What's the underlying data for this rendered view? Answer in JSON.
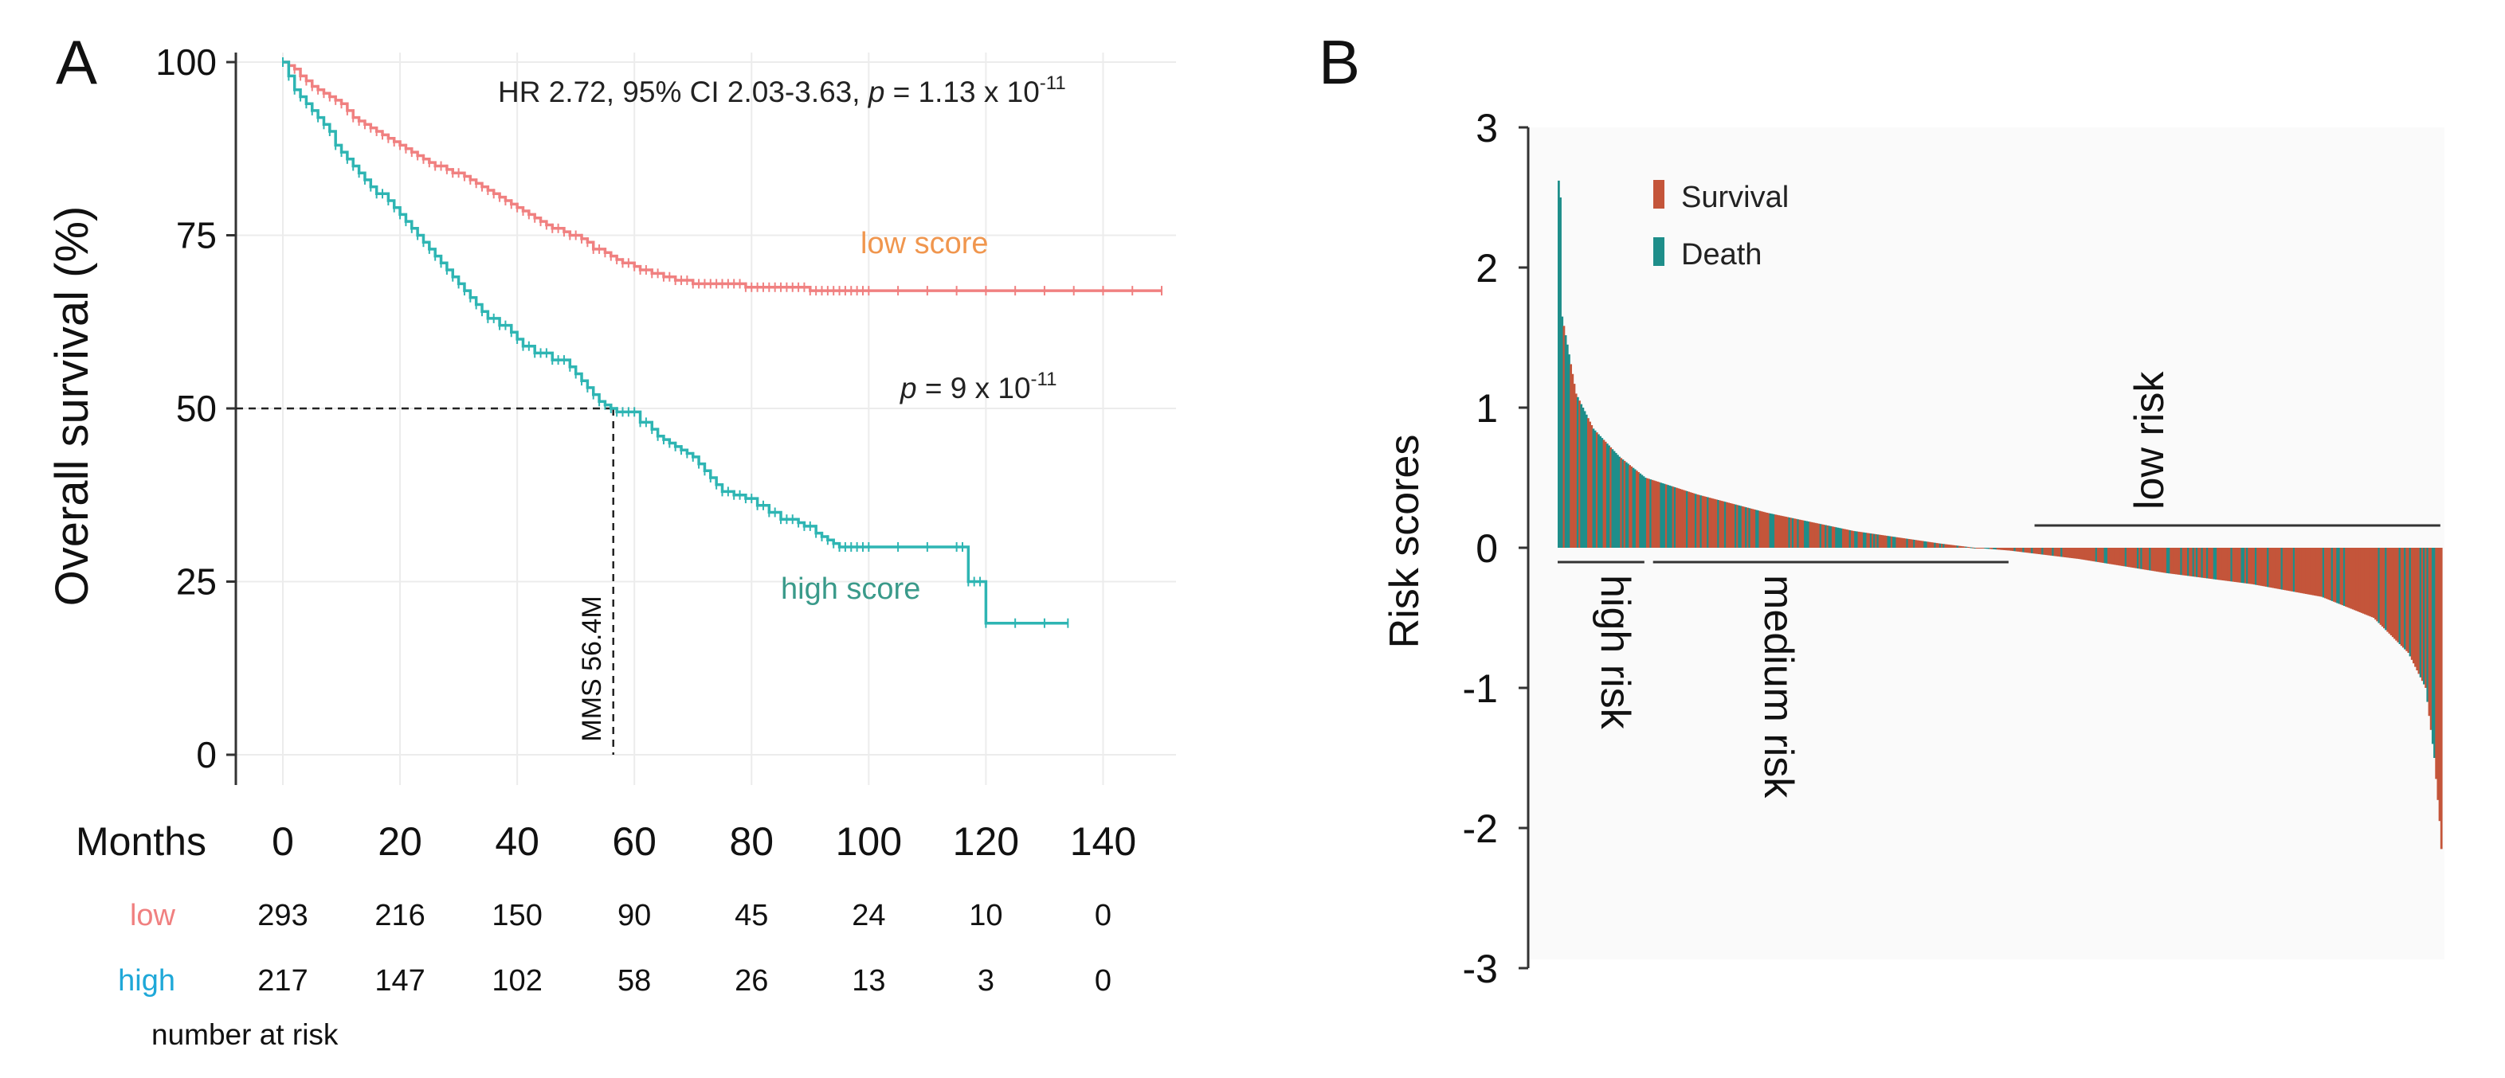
{
  "panels": {
    "a_label": "A",
    "b_label": "B"
  },
  "chart_data": [
    {
      "type": "line",
      "title": "",
      "xlabel": "Months",
      "ylabel": "Overall survival (%)",
      "xlim": [
        0,
        150
      ],
      "ylim": [
        0,
        100
      ],
      "x_ticks": [
        0,
        20,
        40,
        60,
        80,
        100,
        120,
        140
      ],
      "y_ticks": [
        0,
        25,
        50,
        75,
        100
      ],
      "grid": true,
      "annotations": {
        "hr_text": "HR 2.72, 95% CI 2.03-3.63, ",
        "hr_p_label": "p",
        "hr_p_value": " = 1.13 x 10",
        "hr_p_exp": "-11",
        "logrank_p_label": "p",
        "logrank_p_value": " = 9 x 10",
        "logrank_p_exp": "-11",
        "median_label": "MMS 56.4M",
        "median_months": 56.4,
        "median_survival": 50
      },
      "colors": {
        "low": "#F08080",
        "high": "#2EB5B3",
        "low_label": "#F0964E",
        "high_label": "#3A9A8A",
        "risk_high_label": "#1FA8D8"
      },
      "series": [
        {
          "name": "low score",
          "x": [
            0,
            1,
            2,
            3,
            4,
            5,
            6,
            7,
            8,
            9,
            10,
            11,
            12,
            13,
            14,
            15,
            16,
            17,
            18,
            19,
            20,
            21,
            22,
            23,
            24,
            25,
            26,
            27,
            28,
            29,
            30,
            31,
            32,
            33,
            34,
            35,
            36,
            37,
            38,
            39,
            40,
            41,
            42,
            43,
            44,
            45,
            46,
            47,
            48,
            49,
            50,
            51,
            52,
            53,
            54,
            55,
            56,
            57,
            58,
            59,
            60,
            61,
            62,
            63,
            64,
            65,
            66,
            67,
            68,
            69,
            70,
            71,
            72,
            73,
            74,
            75,
            76,
            77,
            78,
            79,
            80,
            81,
            82,
            83,
            84,
            85,
            86,
            87,
            88,
            89,
            90,
            91,
            92,
            93,
            94,
            95,
            96,
            97,
            98,
            99,
            100,
            105,
            110,
            115,
            120,
            125,
            130,
            135,
            140,
            145,
            150
          ],
          "y": [
            100,
            99.5,
            99,
            98,
            97.3,
            96.5,
            96,
            95.5,
            95,
            94.5,
            94,
            93,
            92,
            91.5,
            91,
            90.5,
            90,
            89.5,
            89,
            88.5,
            88,
            87.5,
            87,
            86.5,
            86,
            85.5,
            85,
            85,
            84.5,
            84,
            84,
            83.5,
            83,
            82.5,
            82,
            81.5,
            81,
            80.5,
            80,
            79.5,
            79,
            78.5,
            78,
            77.5,
            77,
            76.5,
            76,
            76,
            75.5,
            75,
            75,
            74.5,
            74,
            73,
            73,
            72.5,
            72,
            71.5,
            71,
            71,
            70.5,
            70,
            70,
            69.5,
            69.5,
            69,
            69,
            68.5,
            68.5,
            68.5,
            68,
            68,
            68,
            68,
            68,
            68,
            68,
            68,
            68,
            67.5,
            67.5,
            67.5,
            67.5,
            67.5,
            67.5,
            67.5,
            67.5,
            67.5,
            67.5,
            67.5,
            67,
            67,
            67,
            67,
            67,
            67,
            67,
            67,
            67,
            67,
            67,
            67,
            67,
            67,
            67,
            67,
            67,
            67,
            67,
            67,
            67
          ]
        },
        {
          "name": "high score",
          "x": [
            0,
            1,
            2,
            3,
            4,
            5,
            6,
            7,
            8,
            9,
            10,
            11,
            12,
            13,
            14,
            15,
            16,
            17,
            18,
            19,
            20,
            21,
            22,
            23,
            24,
            25,
            26,
            27,
            28,
            29,
            30,
            31,
            32,
            33,
            34,
            35,
            36,
            37,
            38,
            39,
            40,
            41,
            42,
            43,
            44,
            45,
            46,
            47,
            48,
            49,
            50,
            51,
            52,
            53,
            54,
            55,
            56,
            57,
            58,
            59,
            60,
            61,
            62,
            63,
            64,
            65,
            66,
            67,
            68,
            69,
            70,
            71,
            72,
            73,
            74,
            75,
            76,
            77,
            78,
            79,
            80,
            81,
            82,
            83,
            84,
            85,
            86,
            87,
            88,
            89,
            90,
            91,
            92,
            93,
            94,
            95,
            96,
            97,
            98,
            99,
            100,
            105,
            110,
            115,
            116,
            117,
            118,
            119,
            120,
            125,
            130,
            134
          ],
          "y": [
            100,
            98,
            96,
            95,
            94,
            93,
            92,
            91,
            90,
            88,
            87,
            86,
            85,
            84,
            83,
            82,
            81,
            81,
            80,
            79,
            78,
            77,
            76,
            75,
            74,
            73,
            72,
            71,
            70,
            69,
            68,
            67,
            66,
            65,
            64,
            63,
            63,
            62,
            62,
            61,
            60,
            59,
            59,
            58,
            58,
            58,
            57,
            57,
            57,
            56,
            55,
            54,
            53,
            52,
            51,
            50.5,
            50,
            49.5,
            49.5,
            49.5,
            49.5,
            48,
            48,
            47,
            46,
            45.5,
            45,
            44.5,
            44,
            43.5,
            43,
            42,
            41,
            40,
            39,
            38,
            38,
            37.5,
            37.5,
            37,
            37,
            36,
            36,
            35,
            35,
            34,
            34,
            34,
            33.5,
            33,
            33,
            32,
            31.5,
            31,
            30.5,
            30,
            30,
            30,
            30,
            30,
            30,
            30,
            30,
            30,
            30,
            25,
            25,
            25,
            19,
            19,
            19,
            19
          ]
        }
      ],
      "risk_table": {
        "title": "number at risk",
        "months_label": "Months",
        "rows": [
          {
            "label": "low",
            "values": [
              "293",
              "216",
              "150",
              "90",
              "45",
              "24",
              "10",
              "0"
            ]
          },
          {
            "label": "high",
            "values": [
              "217",
              "147",
              "102",
              "58",
              "26",
              "13",
              "3",
              "0"
            ]
          }
        ]
      }
    },
    {
      "type": "bar",
      "title": "",
      "xlabel": "",
      "ylabel": "Risk scores",
      "ylim": [
        -3,
        3
      ],
      "y_ticks": [
        3,
        2,
        1,
        0,
        -1,
        -2,
        -3
      ],
      "y_tick_labels": [
        "3",
        "2",
        "1",
        "0",
        "-1",
        "-2",
        "-3"
      ],
      "patient_count": 510,
      "legend": [
        {
          "name": "Survival",
          "color": "#C4553A"
        },
        {
          "name": "Death",
          "color": "#1E8E8A"
        }
      ],
      "groups": [
        {
          "name": "high risk",
          "from_index": 0,
          "to_index": 50
        },
        {
          "name": "medium risk",
          "from_index": 55,
          "to_index": 260
        },
        {
          "name": "low risk",
          "from_index": 275,
          "to_index": 509
        }
      ],
      "score_anchors": {
        "index": [
          0,
          1,
          2,
          5,
          10,
          20,
          35,
          50,
          80,
          120,
          170,
          220,
          240,
          260,
          300,
          350,
          400,
          440,
          470,
          490,
          500,
          505,
          508,
          509
        ],
        "score": [
          2.62,
          2.5,
          1.65,
          1.45,
          1.1,
          0.85,
          0.65,
          0.5,
          0.38,
          0.25,
          0.12,
          0.03,
          0.0,
          -0.02,
          -0.08,
          -0.18,
          -0.26,
          -0.35,
          -0.5,
          -0.75,
          -1.0,
          -1.5,
          -1.95,
          -2.15
        ]
      },
      "death_share_by_rank": {
        "top_fraction": 0.7,
        "middle_fraction": 0.35,
        "bottom_fraction": 0.15
      }
    }
  ]
}
